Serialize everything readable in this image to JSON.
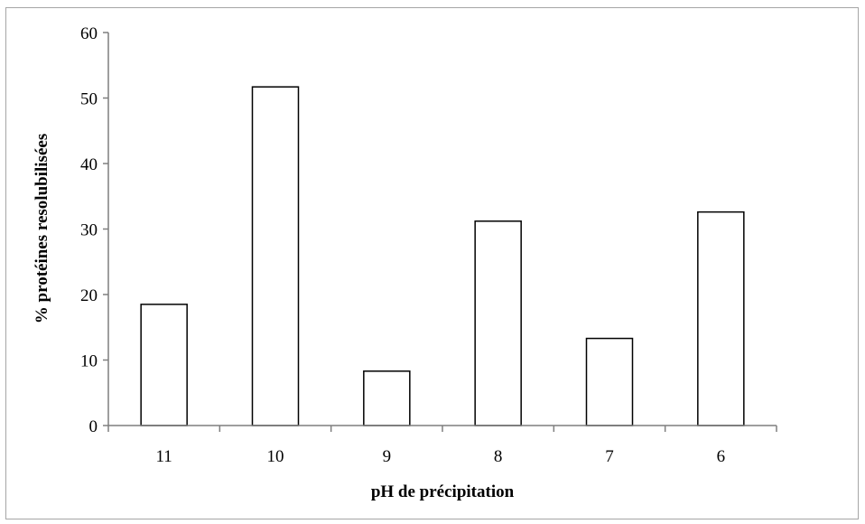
{
  "chart_data": {
    "type": "bar",
    "categories": [
      "11",
      "10",
      "9",
      "8",
      "7",
      "6"
    ],
    "values": [
      18.5,
      51.7,
      8.3,
      31.2,
      13.3,
      32.6
    ],
    "title": "",
    "xlabel": "pH de précipitation",
    "ylabel": "% protéines resolubilisées",
    "ylim": [
      0,
      60
    ],
    "yticks": [
      0,
      10,
      20,
      30,
      40,
      50,
      60
    ],
    "grid": false,
    "legend": "none",
    "colors": {
      "bar_fill": "#ffffff",
      "bar_stroke": "#000000",
      "axis": "#7f7f7f",
      "frame": "#a6a6a6"
    }
  }
}
